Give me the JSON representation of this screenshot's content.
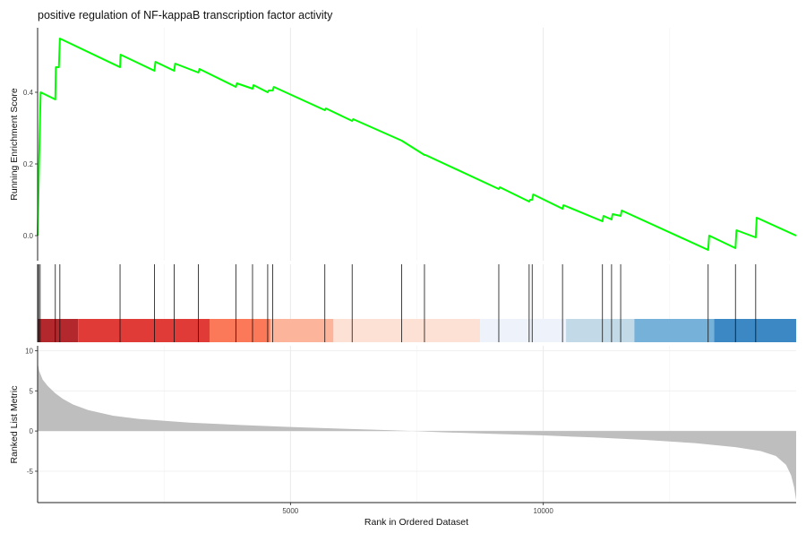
{
  "chart_data": {
    "type": "line",
    "title": "positive regulation of NF-kappaB transcription factor activity",
    "xlabel": "Rank in Ordered Dataset",
    "n_genes": 15000,
    "x_ticks": [
      5000,
      10000
    ],
    "x_tick_labels": [
      "5000",
      "10000"
    ],
    "line_color": "#00ff00",
    "enrichment": {
      "ylabel": "Running Enrichment Score",
      "ylim": [
        -0.07,
        0.58
      ],
      "y_ticks": [
        0.0,
        0.2,
        0.4
      ],
      "y_tick_labels": [
        "0.0",
        "0.2",
        "0.4"
      ],
      "points": [
        [
          0,
          0.0
        ],
        [
          30,
          0.21
        ],
        [
          60,
          0.4
        ],
        [
          350,
          0.38
        ],
        [
          360,
          0.47
        ],
        [
          420,
          0.47
        ],
        [
          440,
          0.55
        ],
        [
          1630,
          0.47
        ],
        [
          1640,
          0.505
        ],
        [
          2310,
          0.46
        ],
        [
          2330,
          0.485
        ],
        [
          2700,
          0.46
        ],
        [
          2720,
          0.48
        ],
        [
          3180,
          0.455
        ],
        [
          3200,
          0.465
        ],
        [
          3920,
          0.415
        ],
        [
          3940,
          0.425
        ],
        [
          4250,
          0.41
        ],
        [
          4270,
          0.42
        ],
        [
          4550,
          0.4
        ],
        [
          4570,
          0.405
        ],
        [
          4650,
          0.405
        ],
        [
          4670,
          0.415
        ],
        [
          5680,
          0.35
        ],
        [
          5700,
          0.355
        ],
        [
          6220,
          0.32
        ],
        [
          6240,
          0.325
        ],
        [
          7200,
          0.265
        ],
        [
          7650,
          0.225
        ],
        [
          7670,
          0.225
        ],
        [
          9120,
          0.13
        ],
        [
          9140,
          0.135
        ],
        [
          9720,
          0.095
        ],
        [
          9740,
          0.1
        ],
        [
          9780,
          0.1
        ],
        [
          9800,
          0.115
        ],
        [
          10380,
          0.075
        ],
        [
          10400,
          0.085
        ],
        [
          11170,
          0.04
        ],
        [
          11190,
          0.055
        ],
        [
          11350,
          0.045
        ],
        [
          11370,
          0.06
        ],
        [
          11530,
          0.055
        ],
        [
          11550,
          0.07
        ],
        [
          13260,
          -0.04
        ],
        [
          13280,
          0.0
        ],
        [
          13800,
          -0.035
        ],
        [
          13820,
          0.015
        ],
        [
          14200,
          -0.005
        ],
        [
          14220,
          0.05
        ],
        [
          15000,
          0.0
        ]
      ]
    },
    "hits": [
      5,
      20,
      50,
      350,
      440,
      1630,
      2310,
      2700,
      3180,
      3920,
      4250,
      4550,
      4650,
      5680,
      6220,
      7200,
      7650,
      9120,
      9720,
      9780,
      10380,
      11170,
      11350,
      11530,
      13260,
      13800,
      14200
    ],
    "ranked_bands": [
      {
        "from": 0,
        "to": 800,
        "color": "#b2282c"
      },
      {
        "from": 800,
        "to": 3400,
        "color": "#e13b37"
      },
      {
        "from": 3400,
        "to": 4600,
        "color": "#fb7858"
      },
      {
        "from": 4600,
        "to": 5850,
        "color": "#fcb49a"
      },
      {
        "from": 5850,
        "to": 8750,
        "color": "#fde1d5"
      },
      {
        "from": 8750,
        "to": 10450,
        "color": "#eef3fb"
      },
      {
        "from": 10450,
        "to": 11800,
        "color": "#c2dae8"
      },
      {
        "from": 11800,
        "to": 13380,
        "color": "#75b1d9"
      },
      {
        "from": 13380,
        "to": 15000,
        "color": "#3b88c4"
      }
    ],
    "ranked_metric": {
      "ylabel": "Ranked List Metric",
      "ylim": [
        -8.9,
        10.6
      ],
      "y_ticks": [
        10,
        5,
        0,
        -5
      ],
      "y_tick_labels": [
        "10",
        "5",
        "0",
        "-5"
      ],
      "fill_color": "#bebebe",
      "zero_crossing": 7400,
      "points": [
        [
          0,
          8.5
        ],
        [
          30,
          7.5
        ],
        [
          100,
          6.4
        ],
        [
          200,
          5.6
        ],
        [
          350,
          4.7
        ],
        [
          500,
          4.0
        ],
        [
          700,
          3.3
        ],
        [
          1000,
          2.6
        ],
        [
          1500,
          1.9
        ],
        [
          2000,
          1.5
        ],
        [
          3000,
          1.05
        ],
        [
          4000,
          0.75
        ],
        [
          5000,
          0.5
        ],
        [
          6000,
          0.3
        ],
        [
          7000,
          0.1
        ],
        [
          7400,
          0.0
        ],
        [
          8000,
          -0.15
        ],
        [
          9000,
          -0.35
        ],
        [
          10000,
          -0.55
        ],
        [
          11000,
          -0.8
        ],
        [
          12000,
          -1.1
        ],
        [
          13000,
          -1.5
        ],
        [
          13800,
          -2.0
        ],
        [
          14300,
          -2.5
        ],
        [
          14600,
          -3.1
        ],
        [
          14800,
          -4.2
        ],
        [
          14900,
          -5.5
        ],
        [
          14960,
          -7.0
        ],
        [
          15000,
          -8.6
        ]
      ]
    },
    "grid": true
  }
}
